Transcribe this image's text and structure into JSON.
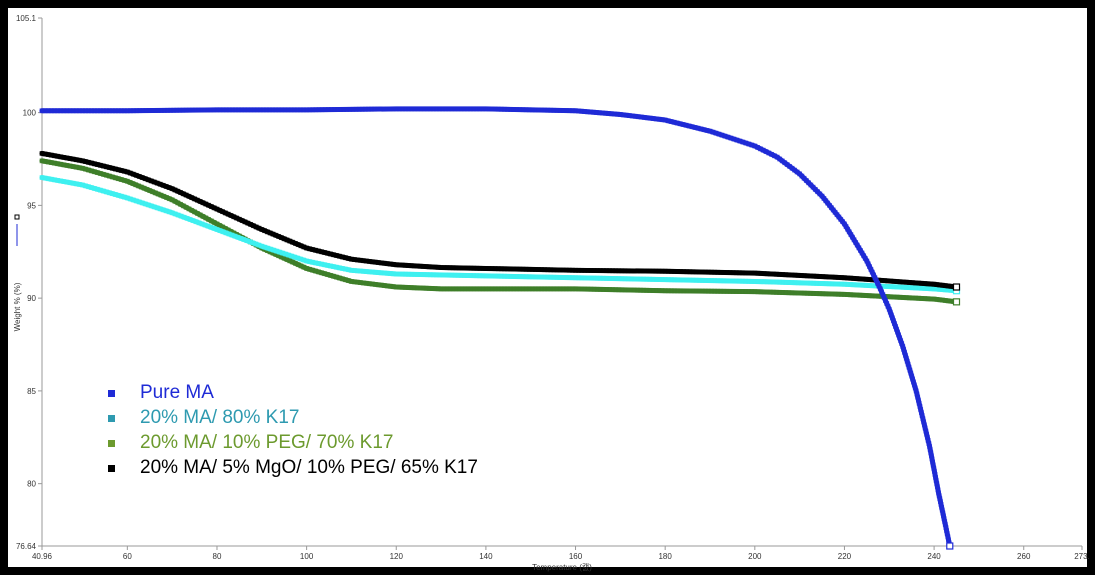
{
  "chart_data": {
    "type": "line",
    "xlabel": "Temperature (캜)",
    "ylabel": "Weight % (%)",
    "xlim": [
      40.96,
      273.0
    ],
    "ylim": [
      76.64,
      105.1
    ],
    "x_ticks": [
      "40.96",
      "60",
      "80",
      "100",
      "120",
      "140",
      "160",
      "180",
      "200",
      "220",
      "240",
      "260",
      "273."
    ],
    "x_tick_values": [
      40.96,
      60,
      80,
      100,
      120,
      140,
      160,
      180,
      200,
      220,
      240,
      260,
      273
    ],
    "y_ticks": [
      "76.64",
      "80",
      "85",
      "90",
      "95",
      "100",
      "105.1"
    ],
    "y_tick_values": [
      76.64,
      80,
      85,
      90,
      95,
      100,
      105.1
    ],
    "legend_position": "bottom-left",
    "series": [
      {
        "name": "Pure MA",
        "color": "#1f2bd6",
        "label_color": "#1f2bd6",
        "x": [
          40.96,
          50,
          60,
          80,
          100,
          120,
          140,
          160,
          170,
          180,
          190,
          200,
          205,
          210,
          215,
          220,
          225,
          228,
          230,
          233,
          236,
          239,
          241,
          242.5,
          243.5
        ],
        "y": [
          100.1,
          100.1,
          100.1,
          100.15,
          100.15,
          100.2,
          100.2,
          100.1,
          99.9,
          99.6,
          99.0,
          98.2,
          97.6,
          96.7,
          95.5,
          94.0,
          92.0,
          90.5,
          89.4,
          87.4,
          85.0,
          82.0,
          79.5,
          77.8,
          76.64
        ]
      },
      {
        "name": "20% MA/ 80% K17",
        "color": "#3ff0f0",
        "label_color": "#2e9ab0",
        "x": [
          40.96,
          50,
          60,
          70,
          80,
          90,
          100,
          110,
          120,
          140,
          160,
          180,
          200,
          220,
          240,
          245
        ],
        "y": [
          96.5,
          96.1,
          95.4,
          94.6,
          93.7,
          92.8,
          92.0,
          91.5,
          91.3,
          91.2,
          91.1,
          91.0,
          90.9,
          90.75,
          90.5,
          90.4
        ]
      },
      {
        "name": "20% MA/ 10% PEG/ 70% K17",
        "color": "#3f7f2a",
        "label_color": "#6c9a2e",
        "x": [
          40.96,
          50,
          60,
          70,
          80,
          90,
          100,
          110,
          120,
          130,
          140,
          160,
          180,
          200,
          220,
          240,
          245
        ],
        "y": [
          97.4,
          97.0,
          96.3,
          95.3,
          94.0,
          92.7,
          91.6,
          90.9,
          90.6,
          90.5,
          90.5,
          90.5,
          90.4,
          90.35,
          90.2,
          89.95,
          89.8
        ]
      },
      {
        "name": "20% MA/ 5% MgO/ 10% PEG/ 65% K17",
        "color": "#000000",
        "label_color": "#000000",
        "x": [
          40.96,
          50,
          60,
          70,
          80,
          90,
          100,
          110,
          120,
          130,
          140,
          160,
          180,
          200,
          220,
          240,
          245
        ],
        "y": [
          97.8,
          97.4,
          96.8,
          95.9,
          94.8,
          93.7,
          92.7,
          92.1,
          91.8,
          91.65,
          91.6,
          91.5,
          91.45,
          91.35,
          91.1,
          90.75,
          90.6
        ]
      }
    ]
  }
}
